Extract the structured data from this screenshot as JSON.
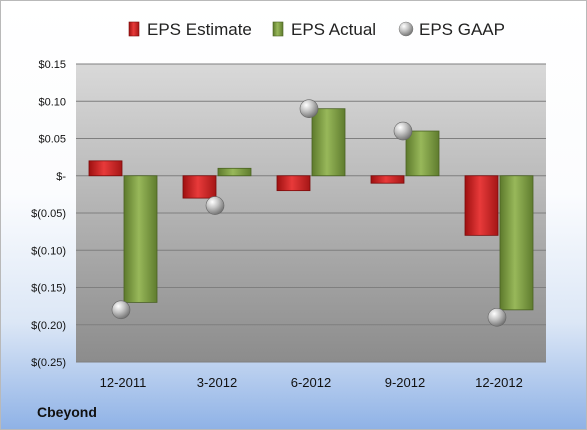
{
  "chart_data": {
    "type": "bar",
    "title": "",
    "xlabel": "",
    "ylabel": "",
    "categories": [
      "12-2011",
      "3-2012",
      "6-2012",
      "9-2012",
      "12-2012"
    ],
    "series": [
      {
        "name": "EPS Estimate",
        "kind": "bar",
        "color": "#d42a2a",
        "values": [
          0.02,
          -0.03,
          -0.02,
          -0.01,
          -0.08
        ]
      },
      {
        "name": "EPS Actual",
        "kind": "bar",
        "color": "#7a9c3e",
        "values": [
          -0.17,
          0.01,
          0.09,
          0.06,
          -0.18
        ]
      },
      {
        "name": "EPS GAAP",
        "kind": "marker",
        "color": "#a9a9a9",
        "values": [
          -0.18,
          -0.04,
          0.09,
          0.06,
          -0.19
        ]
      }
    ],
    "ylim": [
      -0.25,
      0.15
    ],
    "yticks": [
      0.15,
      0.1,
      0.05,
      0.0,
      -0.05,
      -0.1,
      -0.15,
      -0.2,
      -0.25
    ],
    "ytick_labels": [
      "$0.15",
      "$0.10",
      "$0.05",
      "$-",
      "$(0.05)",
      "$(0.10)",
      "$(0.15)",
      "$(0.20)",
      "$(0.25)"
    ],
    "grid": true,
    "legend_position": "top"
  },
  "brand_label": "Cbeyond"
}
